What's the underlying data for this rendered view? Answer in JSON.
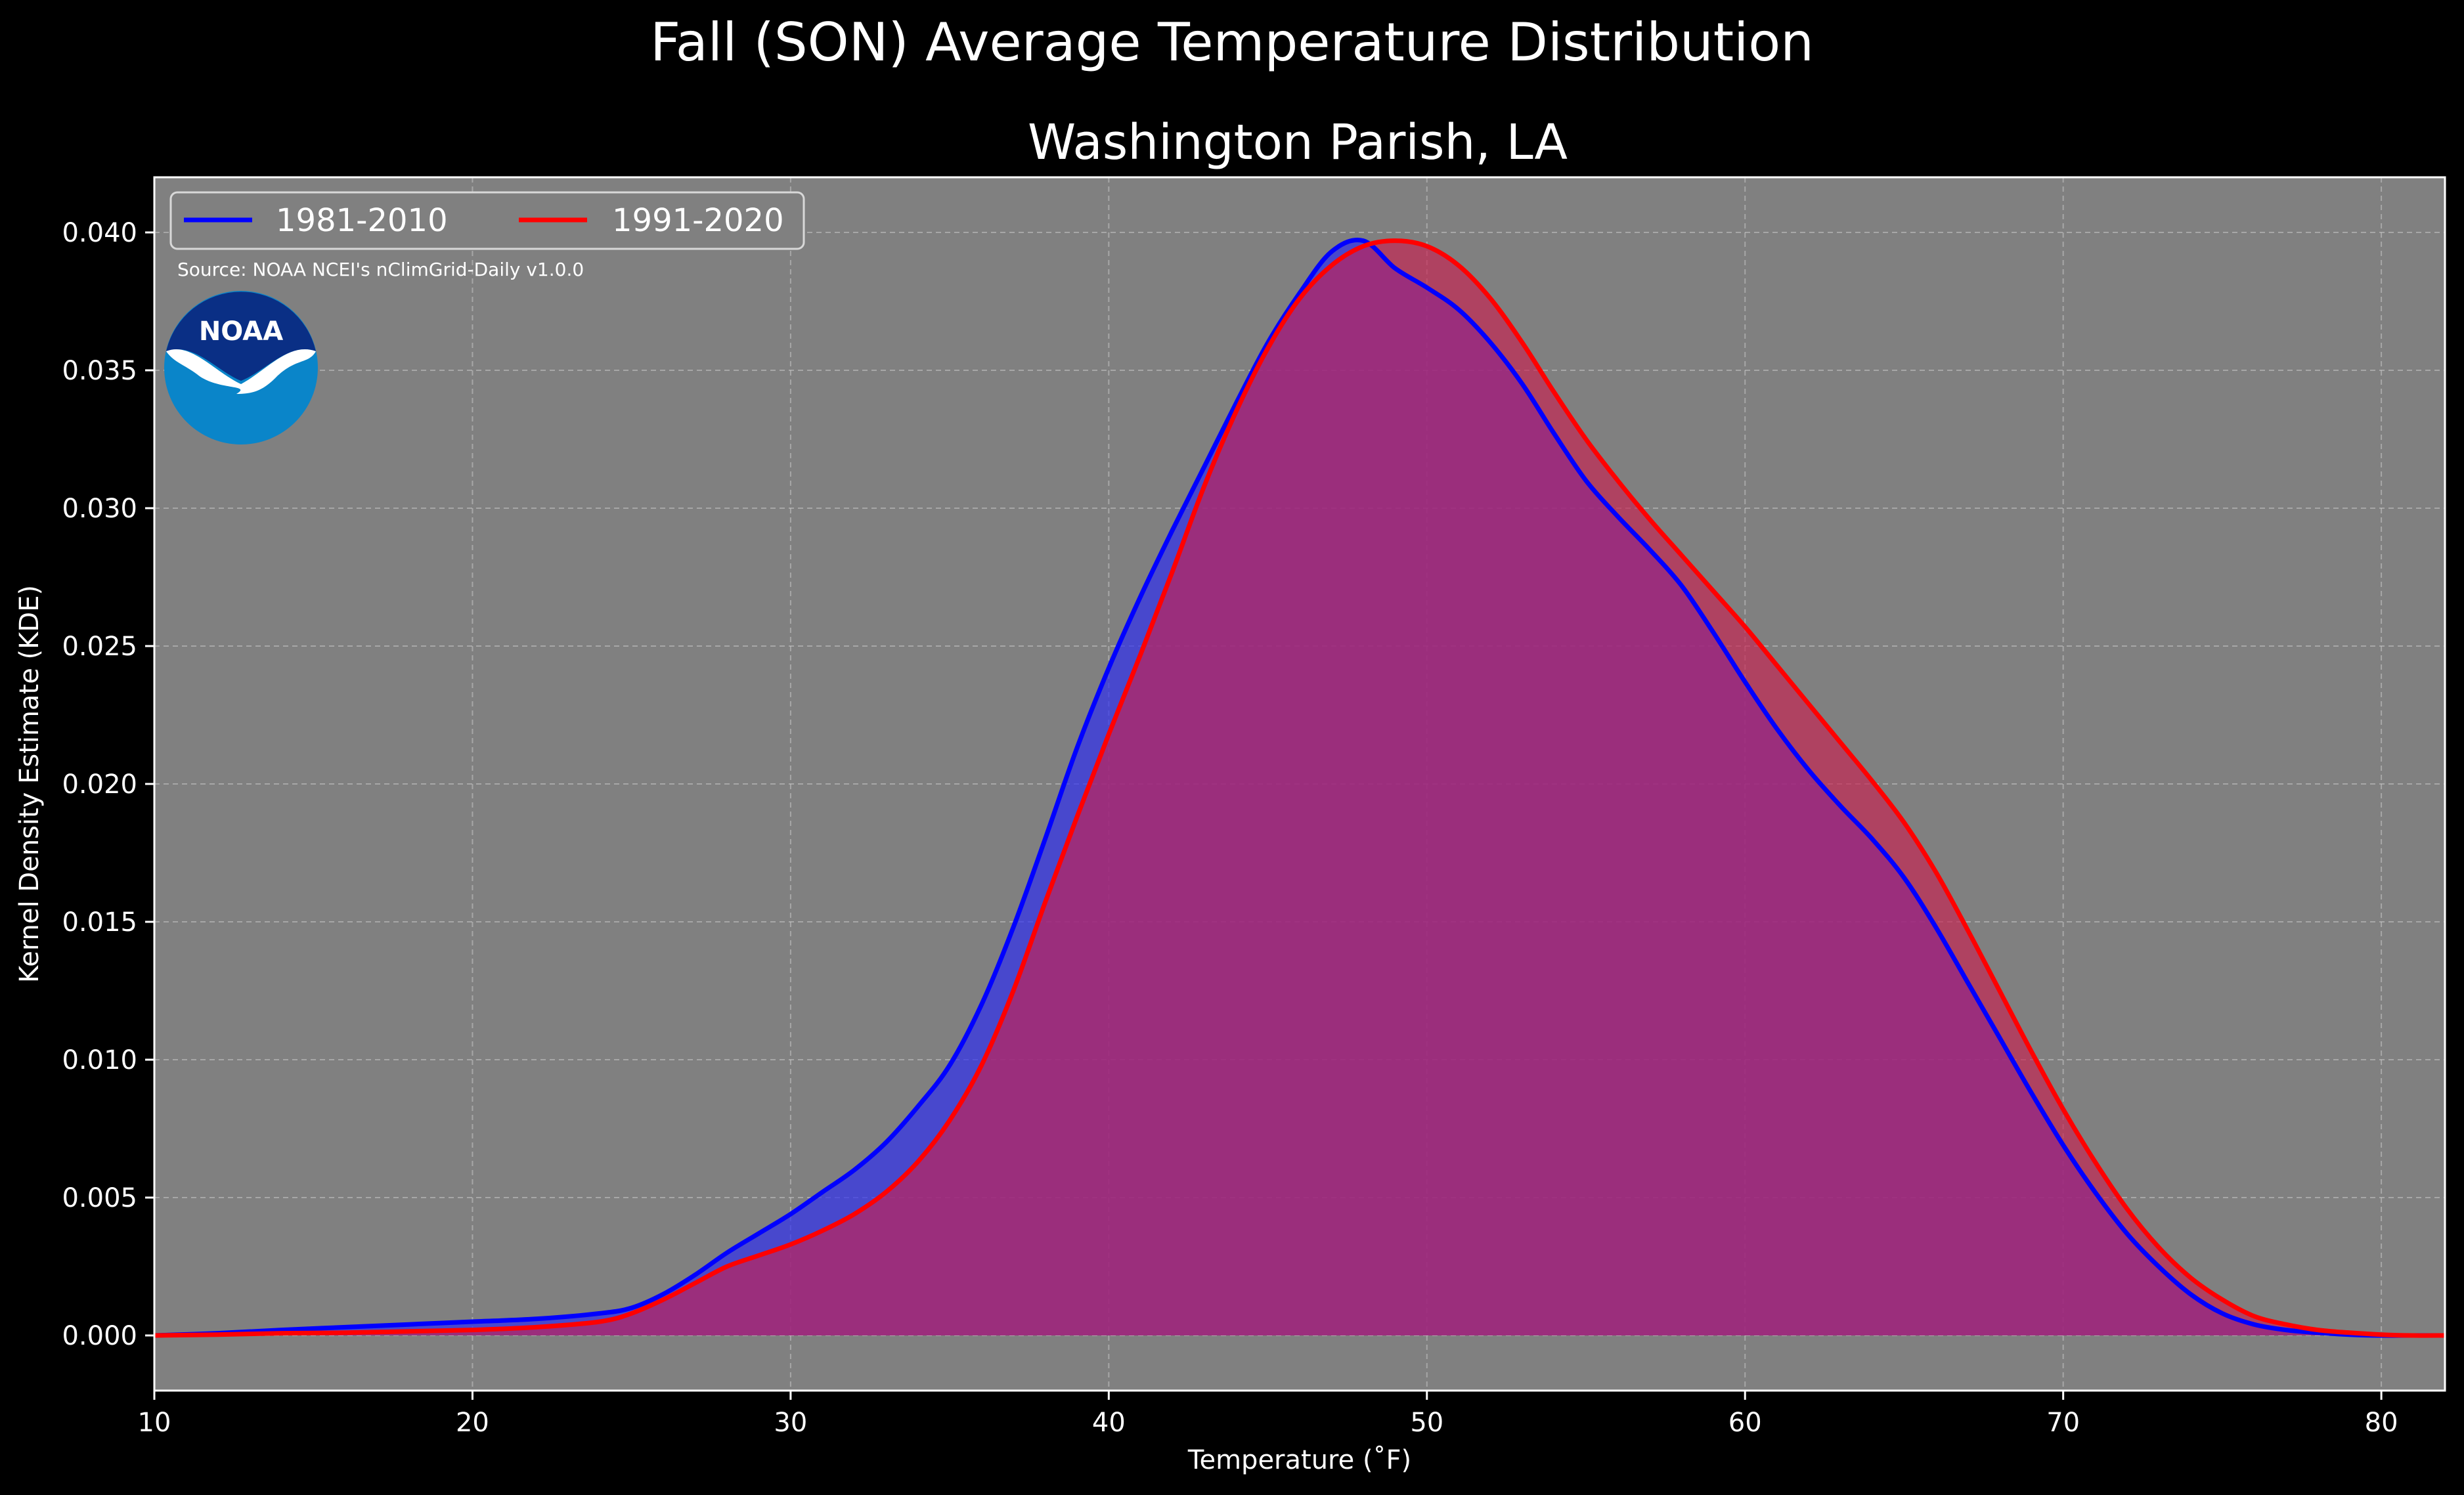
{
  "chart_data": {
    "type": "area",
    "title": "Fall (SON) Average Temperature Distribution",
    "subtitle": "Washington Parish, LA",
    "xlabel": "Temperature (˚F)",
    "ylabel": "Kernel Density Estimate (KDE)",
    "xlim": [
      10,
      82
    ],
    "ylim": [
      -0.002,
      0.042
    ],
    "xticks": [
      10,
      20,
      30,
      40,
      50,
      60,
      70,
      80
    ],
    "xtick_labels": [
      "10",
      "20",
      "30",
      "40",
      "50",
      "60",
      "70",
      "80"
    ],
    "yticks": [
      0,
      0.005,
      0.01,
      0.015,
      0.02,
      0.025,
      0.03,
      0.035,
      0.04
    ],
    "ytick_labels": [
      "0.000",
      "0.005",
      "0.010",
      "0.015",
      "0.020",
      "0.025",
      "0.030",
      "0.035",
      "0.040"
    ],
    "grid": true,
    "legend_position": "top-left",
    "annotation": "Source: NOAA NCEI's nClimGrid-Daily v1.0.0",
    "logo_text": "NOAA",
    "x": [
      10,
      12,
      14,
      16,
      18,
      20,
      22,
      24,
      25,
      26,
      27,
      28,
      29,
      30,
      31,
      32,
      33,
      34,
      35,
      36,
      37,
      38,
      39,
      40,
      41,
      42,
      43,
      44,
      45,
      46,
      47,
      48,
      49,
      50,
      51,
      52,
      53,
      54,
      55,
      56,
      57,
      58,
      59,
      60,
      61,
      62,
      63,
      64,
      65,
      66,
      67,
      68,
      69,
      70,
      71,
      72,
      73,
      74,
      75,
      76,
      77,
      78,
      79,
      80,
      81,
      82
    ],
    "series": [
      {
        "name": "1981-2010",
        "color": "#0000ff",
        "fill": "#3030ee",
        "values": [
          0,
          8e-05,
          0.0002,
          0.0003,
          0.0004,
          0.0005,
          0.0006,
          0.0008,
          0.001,
          0.0015,
          0.0022,
          0.003,
          0.0037,
          0.0044,
          0.0052,
          0.006,
          0.007,
          0.0083,
          0.0098,
          0.012,
          0.0148,
          0.018,
          0.0213,
          0.0242,
          0.0268,
          0.0292,
          0.0315,
          0.0338,
          0.036,
          0.0378,
          0.0393,
          0.0397,
          0.0387,
          0.038,
          0.0372,
          0.036,
          0.0345,
          0.0327,
          0.031,
          0.0297,
          0.0285,
          0.0272,
          0.0255,
          0.0237,
          0.022,
          0.0205,
          0.0192,
          0.018,
          0.0166,
          0.0148,
          0.0128,
          0.0108,
          0.0088,
          0.0069,
          0.0052,
          0.0037,
          0.0025,
          0.0015,
          0.0008,
          0.0004,
          0.0002,
          0.0001,
          3e-05,
          0,
          0,
          0
        ]
      },
      {
        "name": "1991-2020",
        "color": "#ff0000",
        "fill": "#c82050",
        "values": [
          0,
          3e-05,
          8e-05,
          0.0001,
          0.00015,
          0.0002,
          0.0003,
          0.0005,
          0.0008,
          0.0013,
          0.0019,
          0.0025,
          0.0029,
          0.0033,
          0.0038,
          0.0044,
          0.0052,
          0.0063,
          0.0078,
          0.0098,
          0.0125,
          0.0157,
          0.0188,
          0.0218,
          0.0247,
          0.0277,
          0.0308,
          0.0335,
          0.0358,
          0.0376,
          0.0388,
          0.0395,
          0.0397,
          0.0395,
          0.0388,
          0.0376,
          0.036,
          0.0342,
          0.0325,
          0.031,
          0.0296,
          0.0283,
          0.027,
          0.0257,
          0.0243,
          0.0229,
          0.0215,
          0.0201,
          0.0186,
          0.0168,
          0.0147,
          0.0125,
          0.0103,
          0.0082,
          0.0063,
          0.0046,
          0.0032,
          0.0021,
          0.0013,
          0.0007,
          0.0004,
          0.0002,
          0.0001,
          3e-05,
          0,
          0
        ]
      }
    ]
  }
}
